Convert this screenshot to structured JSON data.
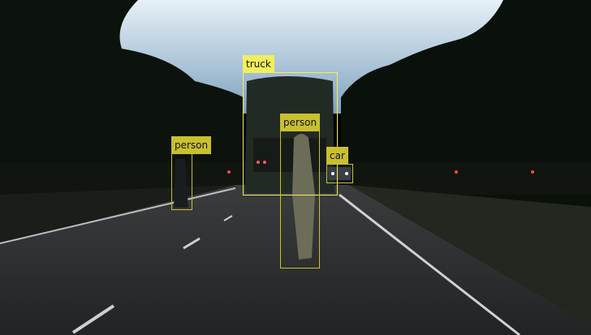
{
  "image": {
    "description_hidden": true
  },
  "detections": [
    {
      "label": "truck",
      "color": "#f3ee5c"
    },
    {
      "label": "person",
      "color": "#c9c02e"
    },
    {
      "label": "person",
      "color": "#c9c02e"
    },
    {
      "label": "car",
      "color": "#c9c02e"
    }
  ],
  "colors": {
    "sky": "#c8dce8",
    "trees": "#0c120c",
    "road": "#2a2b2c",
    "lane": "#d8d8d8"
  }
}
